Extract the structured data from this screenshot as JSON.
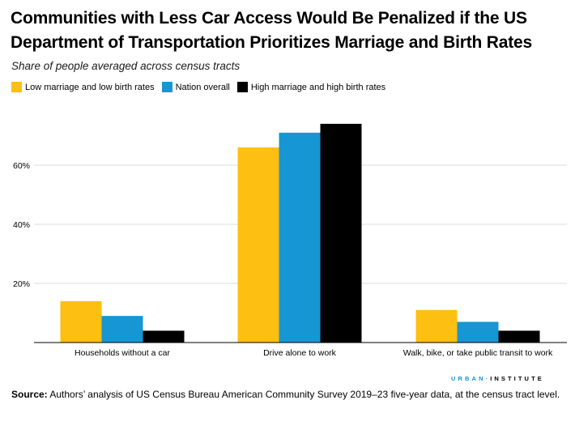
{
  "title": "Communities with Less Car Access Would Be Penalized if the US Department of Transportation Prioritizes Marriage and Birth Rates",
  "subtitle": "Share of people averaged across census tracts",
  "colors": {
    "low": "#fdbf11",
    "nation": "#1696d2",
    "high": "#000000",
    "grid": "#dedddd",
    "axis": "#000000"
  },
  "chart_data": {
    "type": "bar",
    "title": "Communities with Less Car Access Would Be Penalized if the US Department of Transportation Prioritizes Marriage and Birth Rates",
    "subtitle": "Share of people averaged across census tracts",
    "xlabel": "",
    "ylabel": "",
    "categories": [
      "Households without a car",
      "Drive alone to work",
      "Walk, bike, or take public transit to work"
    ],
    "series": [
      {
        "name": "Low marriage and low birth rates",
        "color": "#fdbf11",
        "values": [
          14,
          66,
          11
        ]
      },
      {
        "name": "Nation overall",
        "color": "#1696d2",
        "values": [
          9,
          71,
          7
        ]
      },
      {
        "name": "High marriage and high birth rates",
        "color": "#000000",
        "values": [
          4,
          74,
          4
        ]
      }
    ],
    "yticks": [
      20,
      40,
      60
    ],
    "ytick_labels": [
      "20%",
      "40%",
      "60%"
    ],
    "ylim": [
      0,
      75
    ],
    "grid": true,
    "legend_position": "top-left"
  },
  "source": {
    "label": "Source:",
    "text": "Authors’ analysis of US Census Bureau American Community Survey 2019–23 five-year data, at the census tract level."
  },
  "brand": {
    "urban": "URBAN",
    "dot": "·",
    "institute": "INSTITUTE"
  }
}
